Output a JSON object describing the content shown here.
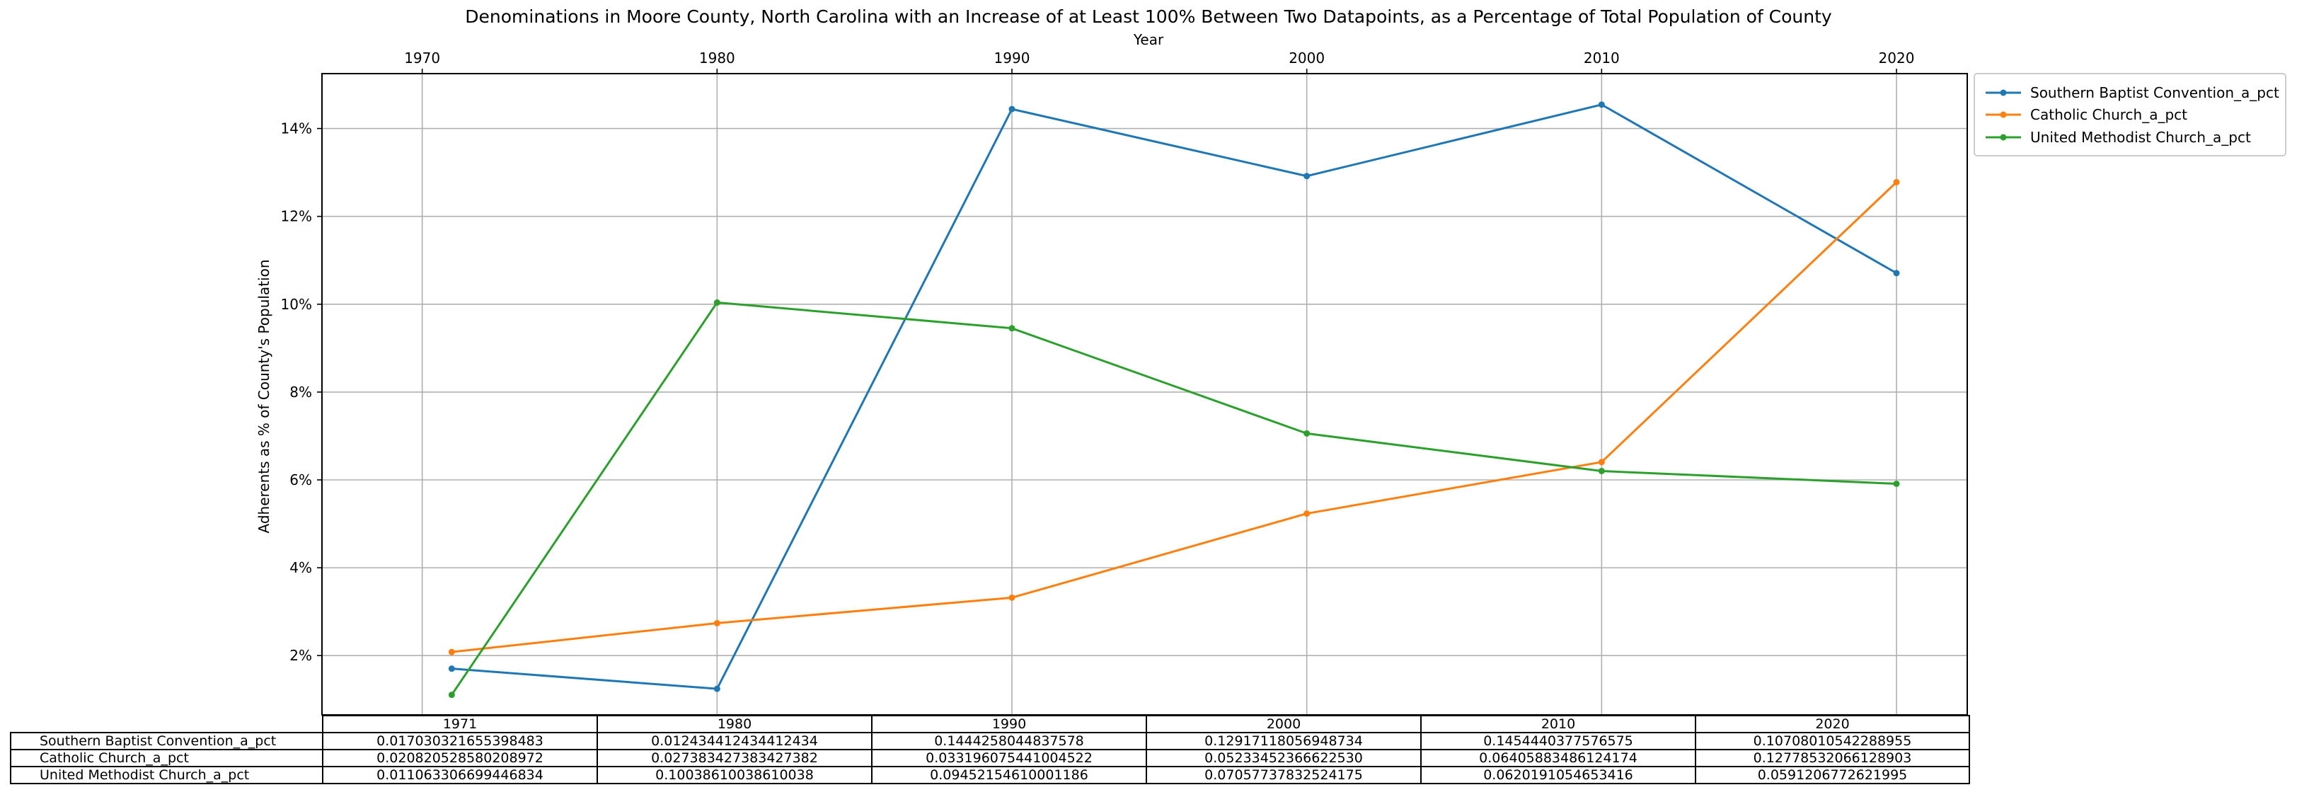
{
  "chart_data": {
    "type": "line",
    "title": "Denominations in Moore County, North Carolina with an Increase of at Least 100% Between Two Datapoints, as a Percentage of Total Population of County",
    "xlabel": "Year",
    "ylabel": "Adherents as % of County's Population",
    "x_ticks": [
      "1970",
      "1980",
      "1990",
      "2000",
      "2010",
      "2020"
    ],
    "y_ticks": [
      "2%",
      "4%",
      "6%",
      "8%",
      "10%",
      "12%",
      "14%"
    ],
    "xlim": [
      1966.6,
      2022.4
    ],
    "ylim": [
      0.0065,
      0.1525
    ],
    "grid": true,
    "legend_position": "upper-right-outside",
    "x": [
      1971,
      1980,
      1990,
      2000,
      2010,
      2020
    ],
    "series": [
      {
        "name": "Southern Baptist Convention_a_pct",
        "color": "#1f77b4",
        "values": [
          0.017030321655398483,
          0.012434412434412434,
          0.1444258044837578,
          0.12917118056948734,
          0.1454440377576575,
          0.10708010542288955
        ]
      },
      {
        "name": "Catholic Church_a_pct",
        "color": "#ff7f0e",
        "values": [
          0.020820528580208972,
          0.027383427383427382,
          0.03319607544100452,
          0.0523345236662253,
          0.06405883486124174,
          0.12778532066128903
        ]
      },
      {
        "name": "United Methodist Church_a_pct",
        "color": "#2ca02c",
        "values": [
          0.011063306699446834,
          0.10038610038610038,
          0.09452154610001186,
          0.07057737832524175,
          0.0620191054653416,
          0.0591206772621995
        ]
      }
    ],
    "table": {
      "columns": [
        "1971",
        "1980",
        "1990",
        "2000",
        "2010",
        "2020"
      ],
      "rows": [
        {
          "label": "Southern Baptist Convention_a_pct",
          "cells": [
            "0.017030321655398483",
            "0.012434412434412434",
            "0.1444258044837578",
            "0.12917118056948734",
            "0.1454440377576575",
            "0.10708010542288955"
          ]
        },
        {
          "label": "Catholic Church_a_pct",
          "cells": [
            "0.020820528580208972",
            "0.027383427383427382",
            "0.033196075441004522",
            "0.05233452366622530",
            "0.06405883486124174",
            "0.12778532066128903"
          ]
        },
        {
          "label": "United Methodist Church_a_pct",
          "cells": [
            "0.011063306699446834",
            "0.10038610038610038",
            "0.09452154610001186",
            "0.07057737832524175",
            "0.0620191054653416",
            "0.0591206772621995"
          ]
        }
      ]
    }
  }
}
